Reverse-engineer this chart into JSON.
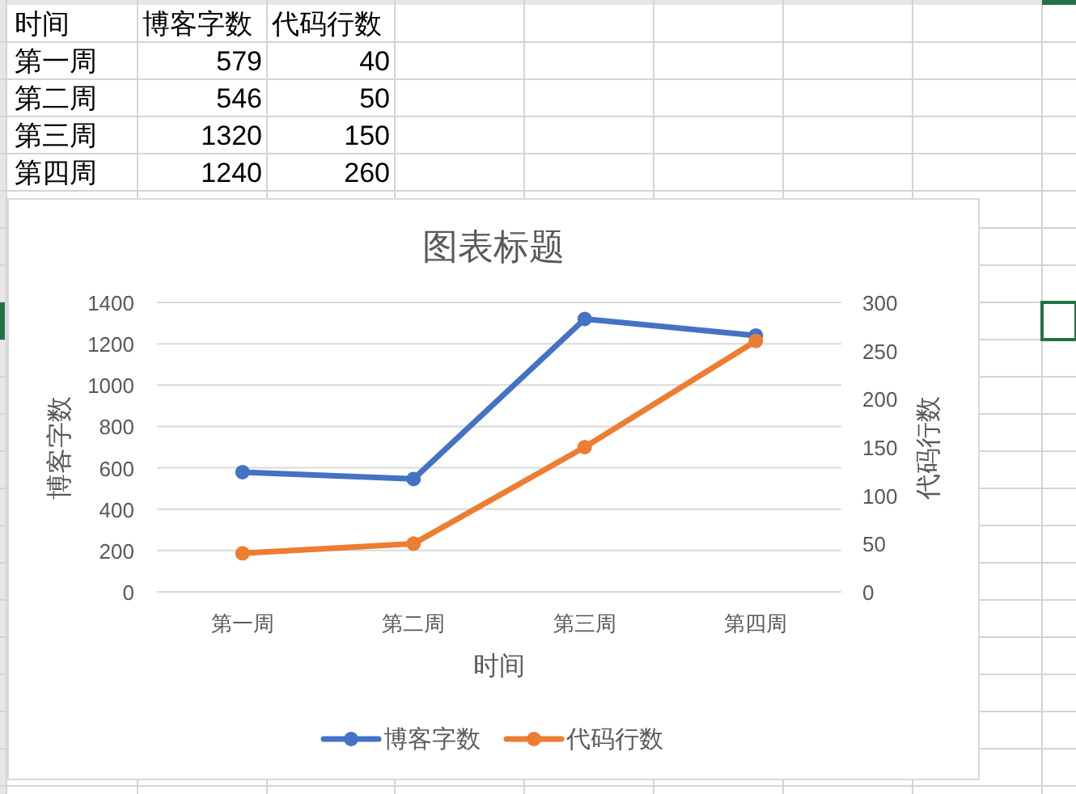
{
  "chart_data": [
    {
      "type": "other",
      "annotations": [
        "时间",
        "博客字数",
        "代码行数",
        "第一周",
        "579",
        "40",
        "第二周",
        "546",
        "50",
        "第三周",
        "1320",
        "150",
        "第四周",
        "1240",
        "260"
      ]
    },
    {
      "type": "line",
      "title": "图表标题",
      "xlabel": "时间",
      "ylabel": "博客字数",
      "y2label": "代码行数",
      "categories": [
        "第一周",
        "第二周",
        "第三周",
        "第四周"
      ],
      "series": [
        {
          "name": "博客字数",
          "color": "#4472c4",
          "values": [
            579,
            546,
            1320,
            1240
          ]
        },
        {
          "name": "代码行数",
          "color": "#ed7d31",
          "values": [
            40,
            50,
            150,
            260
          ],
          "axis": "y2"
        }
      ],
      "ylim": [
        0,
        1400
      ],
      "yticks": [
        0,
        200,
        400,
        600,
        800,
        1000,
        1200,
        1400
      ],
      "y2lim": [
        0,
        300
      ],
      "y2ticks": [
        0,
        50,
        100,
        150,
        200,
        250,
        300
      ],
      "grid": "y",
      "legend": "bottom",
      "marker": "circle",
      "line_style": "solid"
    }
  ]
}
